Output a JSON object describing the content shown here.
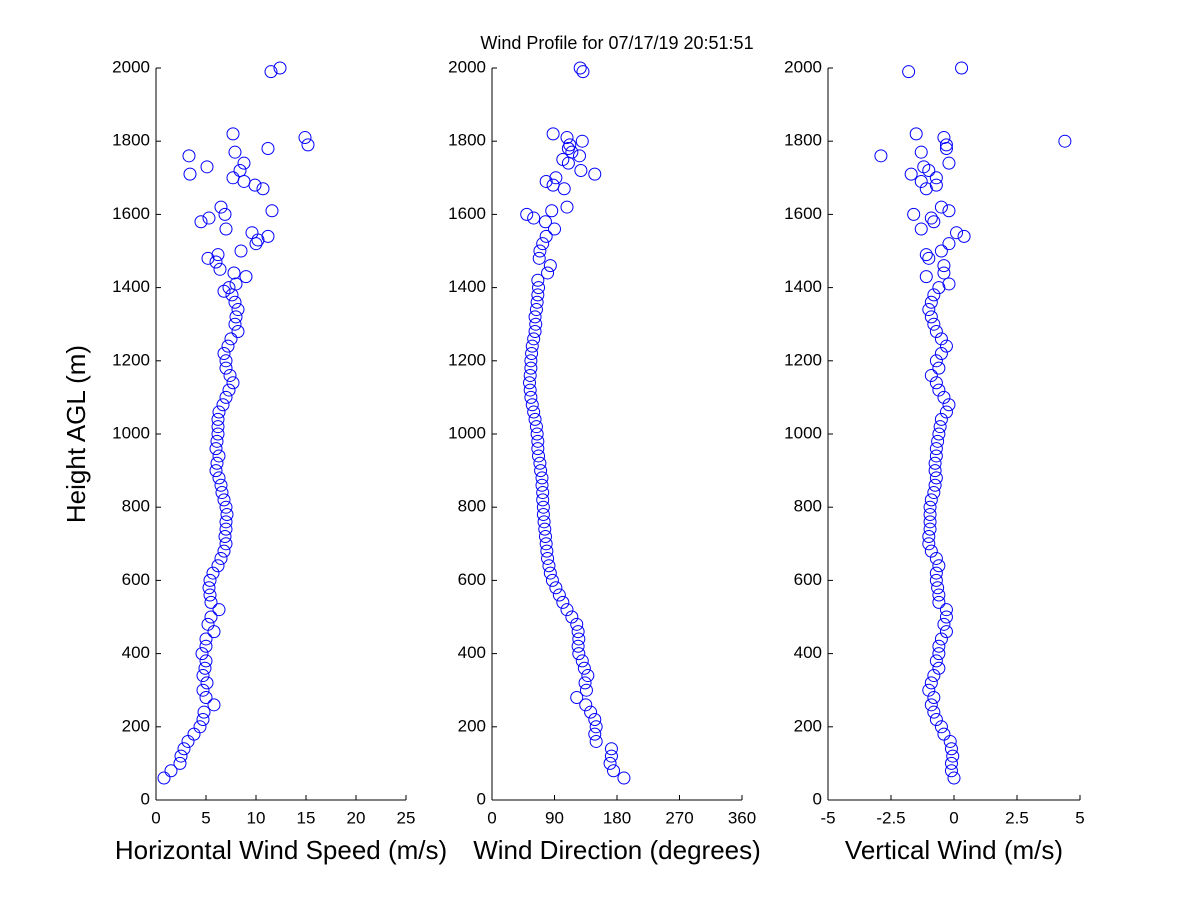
{
  "chart_data": [
    {
      "type": "scatter",
      "title": "Wind Profile for  07/17/19 20:51:51",
      "ylabel": "Height AGL (m)",
      "xlabel": "Horizontal Wind Speed (m/s)",
      "color": "#0000ff",
      "xlim": [
        0,
        25
      ],
      "xticks": [
        0,
        5,
        10,
        15,
        20,
        25
      ],
      "ylim": [
        0,
        2000
      ],
      "yticks": [
        0,
        200,
        400,
        600,
        800,
        1000,
        1200,
        1400,
        1600,
        1800,
        2000
      ],
      "x": [
        0.8,
        1.5,
        2.4,
        2.5,
        2.8,
        3.2,
        3.8,
        4.4,
        4.7,
        4.8,
        5.8,
        5.0,
        4.7,
        5.1,
        4.7,
        4.9,
        5.0,
        4.6,
        5.0,
        5.0,
        5.8,
        5.2,
        5.5,
        6.3,
        5.5,
        5.4,
        5.3,
        5.4,
        5.7,
        6.2,
        6.5,
        6.8,
        7.0,
        6.9,
        7.0,
        7.0,
        7.1,
        7.0,
        6.8,
        6.6,
        6.5,
        6.3,
        6.0,
        6.1,
        6.3,
        6.0,
        6.1,
        6.2,
        6.2,
        6.2,
        6.3,
        6.7,
        7.0,
        7.3,
        7.7,
        7.4,
        7.0,
        7.0,
        6.8,
        7.2,
        7.5,
        8.2,
        7.9,
        8.0,
        8.2,
        7.9,
        7.6,
        6.8,
        7.3,
        8.0,
        9.0,
        7.8,
        6.4,
        6.0,
        5.2,
        6.2,
        8.5,
        10.0,
        10.2,
        11.2,
        9.6,
        7.0,
        4.5,
        5.3,
        6.9,
        11.6,
        6.5,
        10.7,
        9.9,
        8.8,
        7.7,
        3.4,
        8.4,
        5.1,
        8.8,
        3.3,
        7.9,
        11.2,
        15.2,
        14.9,
        7.7,
        11.5,
        12.4
      ],
      "y": [
        60,
        80,
        100,
        120,
        140,
        160,
        180,
        200,
        220,
        240,
        260,
        280,
        300,
        320,
        340,
        360,
        380,
        400,
        420,
        440,
        460,
        480,
        500,
        520,
        540,
        560,
        580,
        600,
        620,
        640,
        660,
        680,
        700,
        720,
        740,
        760,
        780,
        800,
        820,
        840,
        860,
        880,
        900,
        920,
        940,
        960,
        980,
        1000,
        1020,
        1040,
        1060,
        1080,
        1100,
        1120,
        1140,
        1160,
        1180,
        1200,
        1220,
        1240,
        1260,
        1280,
        1300,
        1320,
        1340,
        1360,
        1380,
        1390,
        1400,
        1410,
        1430,
        1440,
        1450,
        1470,
        1480,
        1490,
        1500,
        1520,
        1530,
        1540,
        1550,
        1560,
        1580,
        1590,
        1600,
        1610,
        1620,
        1670,
        1680,
        1690,
        1700,
        1710,
        1720,
        1730,
        1740,
        1760,
        1770,
        1780,
        1790,
        1810,
        1820,
        1990,
        2000
      ]
    },
    {
      "type": "scatter",
      "xlabel": "Wind Direction (degrees)",
      "color": "#0000ff",
      "xlim": [
        0,
        360
      ],
      "xticks": [
        0,
        90,
        180,
        270,
        360
      ],
      "ylim": [
        0,
        2000
      ],
      "yticks": [
        0,
        200,
        400,
        600,
        800,
        1000,
        1200,
        1400,
        1600,
        1800,
        2000
      ],
      "x": [
        190,
        175,
        170,
        172,
        172,
        150,
        148,
        150,
        148,
        142,
        135,
        122,
        136,
        134,
        138,
        133,
        130,
        125,
        124,
        125,
        124,
        122,
        115,
        108,
        102,
        97,
        92,
        87,
        84,
        82,
        80,
        79,
        78,
        77,
        76,
        75,
        74,
        74,
        73,
        73,
        72,
        72,
        70,
        69,
        67,
        66,
        66,
        65,
        64,
        62,
        60,
        58,
        56,
        55,
        54,
        55,
        56,
        56,
        57,
        58,
        60,
        62,
        63,
        62,
        64,
        65,
        66,
        67,
        66,
        80,
        84,
        68,
        69,
        73,
        78,
        90,
        77,
        60,
        50,
        86,
        108,
        104,
        88,
        78,
        92,
        148,
        128,
        110,
        102,
        126,
        115,
        110,
        112,
        130,
        108,
        88,
        131,
        127
      ],
      "y": [
        60,
        80,
        100,
        120,
        140,
        160,
        180,
        200,
        220,
        240,
        260,
        280,
        300,
        320,
        340,
        360,
        380,
        400,
        420,
        440,
        460,
        480,
        500,
        520,
        540,
        560,
        580,
        600,
        620,
        640,
        660,
        680,
        700,
        720,
        740,
        760,
        780,
        800,
        820,
        840,
        860,
        880,
        900,
        920,
        940,
        960,
        980,
        1000,
        1020,
        1040,
        1060,
        1080,
        1100,
        1120,
        1140,
        1160,
        1180,
        1200,
        1220,
        1240,
        1260,
        1280,
        1300,
        1320,
        1340,
        1360,
        1380,
        1400,
        1420,
        1440,
        1460,
        1480,
        1500,
        1520,
        1540,
        1560,
        1580,
        1590,
        1600,
        1610,
        1620,
        1670,
        1680,
        1690,
        1700,
        1710,
        1720,
        1740,
        1750,
        1760,
        1770,
        1780,
        1790,
        1800,
        1810,
        1820,
        1990,
        2000
      ]
    },
    {
      "type": "scatter",
      "xlabel": "Vertical Wind (m/s)",
      "color": "#0000ff",
      "xlim": [
        -5,
        5
      ],
      "xticks": [
        -5,
        -2.5,
        0,
        2.5,
        5
      ],
      "ylim": [
        0,
        2000
      ],
      "yticks": [
        0,
        200,
        400,
        600,
        800,
        1000,
        1200,
        1400,
        1600,
        1800,
        2000
      ],
      "x": [
        0,
        -0.1,
        -0.1,
        -0.05,
        -0.1,
        -0.15,
        -0.4,
        -0.5,
        -0.7,
        -0.8,
        -0.9,
        -0.8,
        -1.0,
        -0.9,
        -0.8,
        -0.6,
        -0.7,
        -0.6,
        -0.6,
        -0.5,
        -0.3,
        -0.4,
        -0.3,
        -0.3,
        -0.6,
        -0.6,
        -0.65,
        -0.7,
        -0.7,
        -0.6,
        -0.7,
        -0.9,
        -1.0,
        -1.0,
        -0.95,
        -0.95,
        -0.95,
        -0.95,
        -0.9,
        -0.8,
        -0.75,
        -0.7,
        -0.75,
        -0.75,
        -0.7,
        -0.7,
        -0.65,
        -0.6,
        -0.55,
        -0.5,
        -0.3,
        -0.2,
        -0.4,
        -0.6,
        -0.7,
        -0.9,
        -0.6,
        -0.7,
        -0.5,
        -0.3,
        -0.5,
        -0.7,
        -0.8,
        -0.9,
        -1.0,
        -0.9,
        -0.8,
        -0.6,
        -0.2,
        -1.1,
        -0.4,
        -0.4,
        -1.0,
        -1.1,
        -0.5,
        -0.2,
        0.4,
        0.1,
        -1.3,
        -0.8,
        -0.9,
        -1.6,
        -0.2,
        -0.5,
        -1.1,
        -0.7,
        -1.3,
        -0.7,
        -1.7,
        -1.0,
        -1.2,
        -0.2,
        -2.9,
        -1.3,
        -0.3,
        -0.3,
        4.4,
        -0.4,
        -1.5,
        -1.8,
        0.3
      ],
      "y": [
        60,
        80,
        100,
        120,
        140,
        160,
        180,
        200,
        220,
        240,
        260,
        280,
        300,
        320,
        340,
        360,
        380,
        400,
        420,
        440,
        460,
        480,
        500,
        520,
        540,
        560,
        580,
        600,
        620,
        640,
        660,
        680,
        700,
        720,
        740,
        760,
        780,
        800,
        820,
        840,
        860,
        880,
        900,
        920,
        940,
        960,
        980,
        1000,
        1020,
        1040,
        1060,
        1080,
        1100,
        1120,
        1140,
        1160,
        1180,
        1200,
        1220,
        1240,
        1260,
        1280,
        1300,
        1320,
        1340,
        1360,
        1380,
        1400,
        1410,
        1430,
        1440,
        1460,
        1480,
        1490,
        1500,
        1520,
        1540,
        1550,
        1560,
        1580,
        1590,
        1600,
        1610,
        1620,
        1670,
        1680,
        1690,
        1700,
        1710,
        1720,
        1730,
        1740,
        1760,
        1770,
        1780,
        1790,
        1800,
        1810,
        1820,
        1990,
        2000
      ]
    }
  ]
}
